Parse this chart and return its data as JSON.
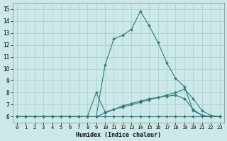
{
  "bg_color": "#cce8e8",
  "grid_color": "#aacccc",
  "line_color": "#2e7d7d",
  "xlabel": "Humidex (Indice chaleur)",
  "xlim": [
    -0.5,
    23.5
  ],
  "ylim": [
    5.5,
    15.5
  ],
  "yticks": [
    6,
    7,
    8,
    9,
    10,
    11,
    12,
    13,
    14,
    15
  ],
  "xticks": [
    0,
    1,
    2,
    3,
    4,
    5,
    6,
    7,
    8,
    9,
    10,
    11,
    12,
    13,
    14,
    15,
    16,
    17,
    18,
    19,
    20,
    21,
    22,
    23
  ],
  "series": [
    {
      "x": [
        0,
        1,
        2,
        3,
        4,
        5,
        6,
        7,
        8,
        9,
        10,
        11,
        12,
        13,
        14,
        15,
        16,
        17,
        18,
        19,
        20,
        21,
        22,
        23
      ],
      "y": [
        6,
        6,
        6,
        6,
        6,
        6,
        6,
        6,
        6,
        6,
        6,
        6,
        6,
        6,
        6,
        6,
        6,
        6,
        6,
        6,
        6,
        6,
        6,
        6
      ]
    },
    {
      "x": [
        0,
        1,
        2,
        3,
        4,
        5,
        6,
        7,
        8,
        9,
        10,
        11,
        12,
        13,
        14,
        15,
        16,
        17,
        18,
        19,
        20,
        21,
        22,
        23
      ],
      "y": [
        6,
        6,
        6,
        6,
        6,
        6,
        6,
        6,
        6,
        6,
        6.3,
        6.6,
        6.9,
        7.1,
        7.3,
        7.5,
        7.6,
        7.7,
        7.8,
        7.5,
        6.6,
        6.1,
        6.0,
        6.0
      ]
    },
    {
      "x": [
        0,
        1,
        2,
        3,
        4,
        5,
        6,
        7,
        8,
        9,
        10,
        11,
        12,
        13,
        14,
        15,
        16,
        17,
        18,
        19,
        20,
        21,
        22,
        23
      ],
      "y": [
        6,
        6,
        6,
        6,
        6,
        6,
        6,
        6,
        6,
        8.0,
        6.4,
        6.6,
        6.8,
        7.0,
        7.2,
        7.4,
        7.6,
        7.8,
        8.0,
        8.3,
        7.5,
        6.5,
        6.1,
        6.0
      ]
    },
    {
      "x": [
        0,
        1,
        2,
        3,
        4,
        5,
        6,
        7,
        8,
        9,
        10,
        11,
        12,
        13,
        14,
        15,
        16,
        17,
        18,
        19,
        20,
        21,
        22,
        23
      ],
      "y": [
        6,
        6,
        6,
        6,
        6,
        6,
        6,
        6,
        6,
        6,
        10.3,
        12.5,
        12.8,
        13.3,
        14.8,
        13.6,
        12.2,
        10.5,
        9.2,
        8.5,
        6.5,
        6.1,
        6.0,
        6.0
      ]
    }
  ]
}
